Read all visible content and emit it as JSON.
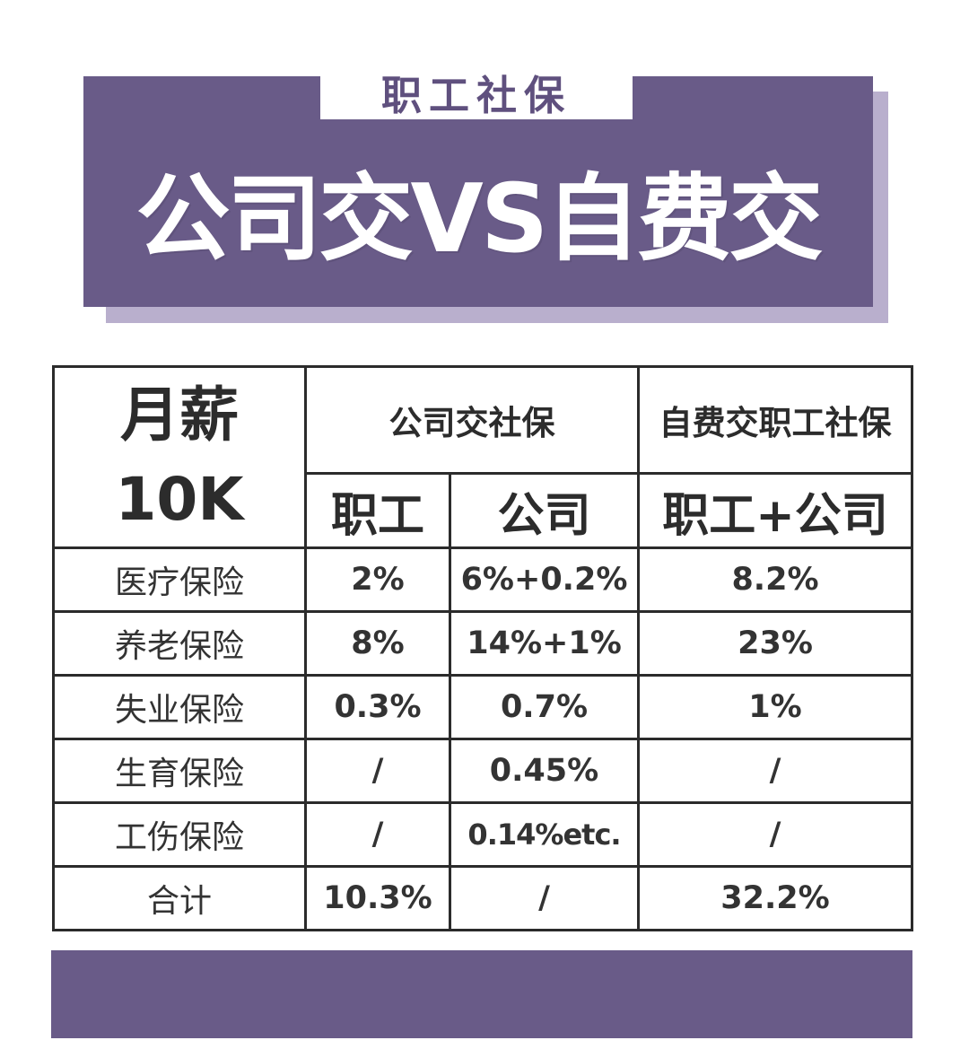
{
  "colors": {
    "banner": "#695b88",
    "banner_shadow": "#b9afcd",
    "tag_text": "#5f507e",
    "table_border": "#2b2b2b",
    "background": "#ffffff"
  },
  "header": {
    "tag": "职工社保",
    "title": "公司交VS自费交"
  },
  "table": {
    "corner_line1": "月薪",
    "corner_line2": "10K",
    "group_company": "公司交社保",
    "group_self": "自费交职工社保",
    "sub_employee": "职工",
    "sub_company": "公司",
    "sub_self": "职工+公司",
    "rows": [
      {
        "label": "医疗保险",
        "employee": "2%",
        "company": "6%+0.2%",
        "self": "8.2%"
      },
      {
        "label": "养老保险",
        "employee": "8%",
        "company": "14%+1%",
        "self": "23%"
      },
      {
        "label": "失业保险",
        "employee": "0.3%",
        "company": "0.7%",
        "self": "1%"
      },
      {
        "label": "生育保险",
        "employee": "/",
        "company": "0.45%",
        "self": "/"
      },
      {
        "label": "工伤保险",
        "employee": "/",
        "company": "0.14%etc.",
        "self": "/"
      },
      {
        "label": "合计",
        "employee": "10.3%",
        "company": "/",
        "self": "32.2%"
      }
    ]
  }
}
